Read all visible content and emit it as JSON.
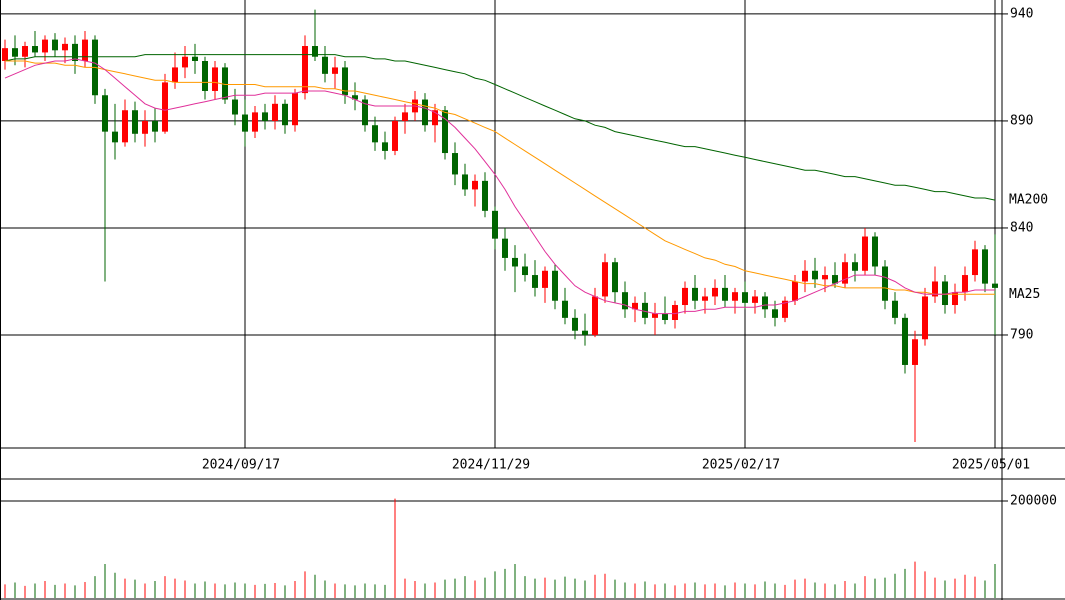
{
  "chart_data": [
    {
      "type": "candlestick",
      "up_color": "#ff0000",
      "down_color": "#006400",
      "xlim": [
        -0.5,
        99.7
      ],
      "xticks": [
        {
          "value": 24,
          "label": "2024/09/17"
        },
        {
          "value": 49,
          "label": "2024/11/29"
        },
        {
          "value": 74,
          "label": "2025/02/17"
        },
        {
          "value": 99,
          "label": "2025/05/01"
        }
      ],
      "ylim": [
        737.2,
        946.5
      ],
      "yticks": [
        790,
        840,
        890,
        940
      ],
      "grid": true,
      "open": [
        918,
        924,
        920,
        925,
        922,
        928,
        923,
        926,
        918,
        928,
        902,
        885,
        880,
        895,
        884,
        890,
        885,
        908,
        915,
        920,
        918,
        904,
        915,
        900,
        893,
        885,
        894,
        890,
        898,
        888,
        903,
        925,
        920,
        912,
        915,
        902,
        900,
        888,
        880,
        876,
        890,
        894,
        900,
        888,
        895,
        875,
        865,
        858,
        862,
        848,
        835,
        826,
        822,
        818,
        812,
        820,
        806,
        798,
        792,
        790,
        808,
        824,
        810,
        802,
        805,
        798,
        800,
        797,
        804,
        812,
        806,
        808,
        812,
        806,
        810,
        805,
        808,
        802,
        798,
        806,
        815,
        820,
        816,
        818,
        814,
        824,
        820,
        836,
        822,
        806,
        798,
        776,
        788,
        808,
        815,
        804,
        810,
        818,
        830,
        814
      ],
      "high": [
        928,
        930,
        927,
        932,
        930,
        931,
        929,
        930,
        932,
        930,
        905,
        898,
        900,
        899,
        895,
        896,
        912,
        922,
        925,
        926,
        920,
        918,
        917,
        905,
        900,
        897,
        898,
        902,
        900,
        905,
        930,
        942,
        925,
        920,
        918,
        908,
        902,
        892,
        885,
        892,
        898,
        904,
        903,
        898,
        897,
        880,
        870,
        865,
        866,
        850,
        840,
        832,
        828,
        825,
        822,
        823,
        812,
        802,
        800,
        812,
        828,
        826,
        815,
        808,
        810,
        805,
        808,
        806,
        815,
        818,
        812,
        816,
        818,
        812,
        815,
        811,
        810,
        806,
        808,
        818,
        825,
        826,
        822,
        824,
        828,
        828,
        840,
        838,
        825,
        810,
        800,
        792,
        812,
        822,
        818,
        814,
        822,
        834,
        832,
        837
      ],
      "low": [
        914,
        916,
        915,
        920,
        918,
        920,
        917,
        912,
        915,
        898,
        815,
        872,
        878,
        880,
        878,
        880,
        884,
        905,
        910,
        912,
        900,
        900,
        898,
        888,
        878,
        882,
        886,
        886,
        884,
        885,
        900,
        918,
        908,
        905,
        898,
        895,
        885,
        876,
        872,
        874,
        884,
        890,
        885,
        880,
        872,
        860,
        855,
        850,
        845,
        830,
        820,
        810,
        815,
        808,
        805,
        802,
        795,
        788,
        785,
        789,
        805,
        805,
        798,
        796,
        795,
        790,
        795,
        793,
        800,
        802,
        800,
        804,
        803,
        800,
        802,
        800,
        798,
        794,
        796,
        804,
        810,
        812,
        810,
        812,
        812,
        815,
        818,
        818,
        802,
        795,
        772,
        740,
        785,
        805,
        800,
        800,
        806,
        815,
        810,
        790
      ],
      "close": [
        924,
        920,
        925,
        922,
        928,
        923,
        926,
        918,
        928,
        902,
        885,
        880,
        895,
        884,
        890,
        885,
        908,
        915,
        920,
        918,
        904,
        915,
        900,
        893,
        885,
        894,
        890,
        898,
        888,
        903,
        925,
        920,
        912,
        915,
        902,
        900,
        888,
        880,
        876,
        890,
        894,
        900,
        888,
        895,
        875,
        865,
        858,
        862,
        848,
        835,
        826,
        822,
        818,
        812,
        820,
        806,
        798,
        792,
        790,
        808,
        824,
        810,
        802,
        805,
        798,
        800,
        797,
        804,
        812,
        806,
        808,
        812,
        806,
        810,
        805,
        808,
        802,
        798,
        806,
        815,
        820,
        816,
        818,
        814,
        824,
        820,
        836,
        822,
        806,
        798,
        776,
        788,
        808,
        815,
        804,
        810,
        818,
        830,
        814,
        812
      ],
      "series": [
        {
          "name": "MA200",
          "color": "#006400",
          "values": [
            918,
            919,
            919,
            920,
            920,
            920,
            920,
            920,
            920,
            920,
            920,
            920,
            920,
            920,
            921,
            921,
            921,
            921,
            921,
            921,
            921,
            921,
            921,
            921,
            921,
            921,
            921,
            921,
            921,
            921,
            921,
            921,
            921,
            921,
            920,
            920,
            920,
            919,
            919,
            918,
            918,
            917,
            916,
            915,
            914,
            913,
            912,
            910,
            909,
            907,
            905,
            903,
            901,
            899,
            897,
            895,
            893,
            891,
            890,
            888,
            887,
            885,
            884,
            883,
            882,
            881,
            880,
            879,
            878,
            878,
            877,
            876,
            875,
            874,
            873,
            872,
            871,
            870,
            869,
            868,
            867,
            867,
            866,
            865,
            864,
            864,
            863,
            862,
            861,
            860,
            860,
            859,
            858,
            857,
            857,
            856,
            855,
            854,
            854,
            853
          ]
        },
        {
          "name": "MA25",
          "color": "#ff9900",
          "values": [
            918,
            918,
            918,
            917,
            917,
            917,
            916,
            916,
            915,
            915,
            914,
            913,
            912,
            911,
            910,
            909,
            909,
            908,
            908,
            908,
            908,
            908,
            907,
            907,
            907,
            907,
            906,
            906,
            906,
            906,
            906,
            906,
            905,
            905,
            904,
            904,
            903,
            902,
            901,
            900,
            899,
            898,
            897,
            896,
            894,
            893,
            891,
            889,
            887,
            885,
            882,
            879,
            876,
            873,
            870,
            867,
            864,
            861,
            858,
            855,
            852,
            849,
            846,
            843,
            840,
            837,
            834,
            832,
            830,
            828,
            826,
            825,
            823,
            822,
            820,
            819,
            818,
            817,
            816,
            815,
            814,
            814,
            813,
            813,
            812,
            812,
            812,
            812,
            812,
            811,
            811,
            810,
            810,
            809,
            809,
            809,
            809,
            809,
            809,
            809
          ]
        },
        {
          "color": "#e0309a",
          "values": [
            910,
            912,
            914,
            916,
            917,
            918,
            918,
            919,
            918,
            917,
            914,
            910,
            906,
            902,
            898,
            896,
            895,
            896,
            897,
            898,
            899,
            900,
            901,
            902,
            902,
            902,
            903,
            903,
            903,
            903,
            904,
            904,
            904,
            903,
            902,
            900,
            898,
            897,
            897,
            897,
            897,
            897,
            896,
            894,
            891,
            887,
            882,
            877,
            871,
            865,
            858,
            850,
            843,
            836,
            829,
            823,
            818,
            813,
            810,
            808,
            806,
            805,
            804,
            802,
            801,
            800,
            800,
            800,
            801,
            801,
            802,
            802,
            803,
            803,
            803,
            803,
            804,
            804,
            805,
            806,
            808,
            810,
            812,
            814,
            816,
            818,
            818,
            818,
            817,
            815,
            812,
            810,
            809,
            809,
            809,
            810,
            810,
            811,
            811,
            811
          ]
        }
      ]
    },
    {
      "type": "bar",
      "xlim": [
        -0.5,
        99.7
      ],
      "ylim": [
        0,
        243300
      ],
      "yticks": [
        200000
      ],
      "grid": true,
      "values": [
        28000,
        32000,
        25000,
        30000,
        35000,
        27000,
        30000,
        26000,
        33000,
        45000,
        70000,
        52000,
        40000,
        38000,
        30000,
        35000,
        45000,
        40000,
        36000,
        30000,
        34000,
        30000,
        28000,
        32000,
        30000,
        27000,
        29000,
        31000,
        26000,
        35000,
        55000,
        48000,
        36000,
        30000,
        28000,
        26000,
        30000,
        28000,
        27000,
        205000,
        40000,
        35000,
        30000,
        32000,
        38000,
        40000,
        45000,
        36000,
        42000,
        55000,
        60000,
        70000,
        45000,
        40000,
        42000,
        38000,
        44000,
        40000,
        36000,
        48000,
        50000,
        38000,
        32000,
        30000,
        34000,
        28000,
        30000,
        26000,
        30000,
        32000,
        28000,
        30000,
        26000,
        32000,
        30000,
        28000,
        34000,
        30000,
        27000,
        38000,
        40000,
        32000,
        30000,
        28000,
        35000,
        30000,
        45000,
        40000,
        42000,
        50000,
        60000,
        75000,
        55000,
        42000,
        36000,
        40000,
        48000,
        44000,
        36000,
        70000
      ]
    }
  ]
}
